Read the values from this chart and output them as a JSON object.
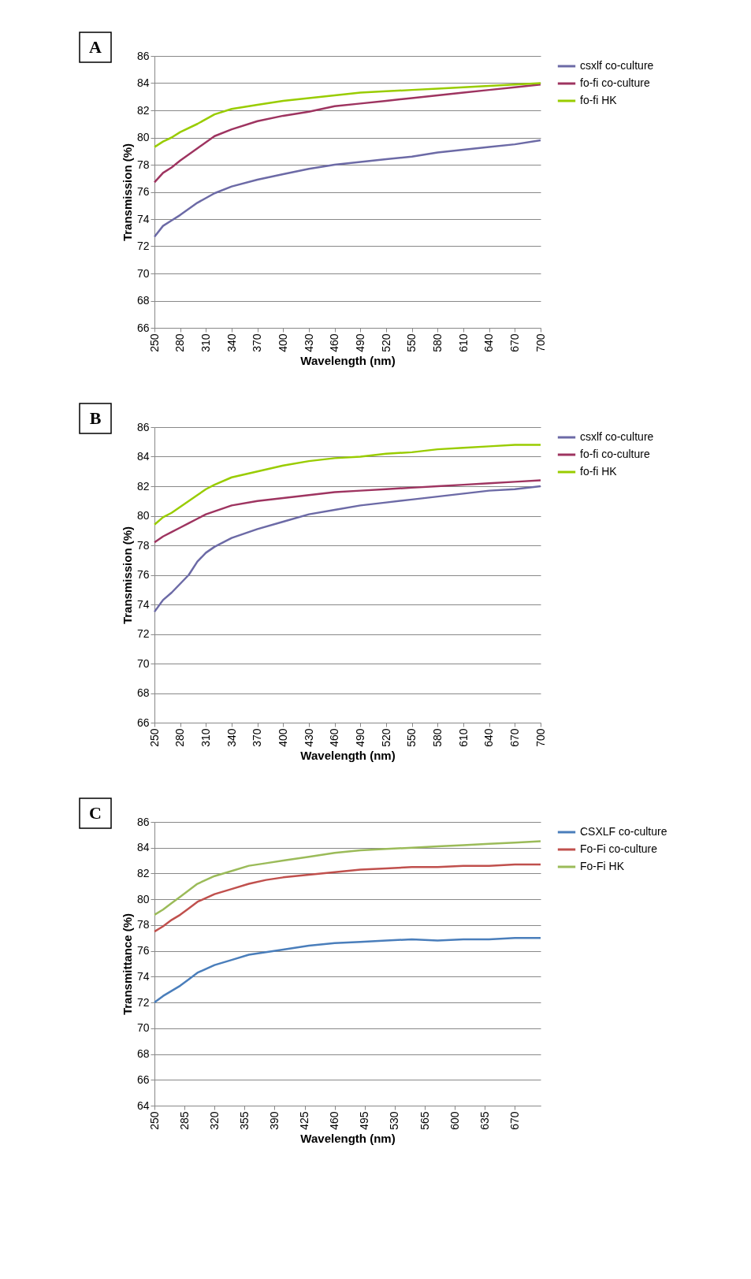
{
  "chart_data": [
    {
      "type": "line",
      "xlabel": "Wavelength (nm)",
      "ylabel": "Transmission (%)",
      "annotations": [
        "A"
      ],
      "xlim": [
        250,
        700
      ],
      "xticks": [
        250,
        280,
        310,
        340,
        370,
        400,
        430,
        460,
        490,
        520,
        550,
        580,
        610,
        640,
        670,
        700
      ],
      "ylim": [
        66,
        86
      ],
      "yticks": [
        66,
        68,
        70,
        72,
        74,
        76,
        78,
        80,
        82,
        84,
        86
      ],
      "grid": "y",
      "legend": "right",
      "line_style": "solid",
      "marker": "none",
      "x": [
        250,
        260,
        270,
        280,
        300,
        320,
        340,
        370,
        400,
        430,
        460,
        490,
        520,
        550,
        580,
        610,
        640,
        670,
        700
      ],
      "series": [
        {
          "name": "csxlf co-culture",
          "color": "#6c6aa6",
          "values": [
            72.7,
            73.5,
            73.9,
            74.3,
            75.2,
            75.9,
            76.4,
            76.9,
            77.3,
            77.7,
            78.0,
            78.2,
            78.4,
            78.6,
            78.9,
            79.1,
            79.3,
            79.5,
            79.8
          ]
        },
        {
          "name": "fo-fi co-culture",
          "color": "#9e3460",
          "values": [
            76.7,
            77.4,
            77.8,
            78.3,
            79.2,
            80.1,
            80.6,
            81.2,
            81.6,
            81.9,
            82.3,
            82.5,
            82.7,
            82.9,
            83.1,
            83.3,
            83.5,
            83.7,
            83.9
          ]
        },
        {
          "name": "fo-fi HK",
          "color": "#99cc00",
          "values": [
            79.3,
            79.7,
            80.0,
            80.4,
            81.0,
            81.7,
            82.1,
            82.4,
            82.7,
            82.9,
            83.1,
            83.3,
            83.4,
            83.5,
            83.6,
            83.7,
            83.8,
            83.9,
            84.0
          ]
        }
      ]
    },
    {
      "type": "line",
      "xlabel": "Wavelength (nm)",
      "ylabel": "Transmission (%)",
      "annotations": [
        "B"
      ],
      "xlim": [
        250,
        700
      ],
      "xticks": [
        250,
        280,
        310,
        340,
        370,
        400,
        430,
        460,
        490,
        520,
        550,
        580,
        610,
        640,
        670,
        700
      ],
      "ylim": [
        66,
        86
      ],
      "yticks": [
        66,
        68,
        70,
        72,
        74,
        76,
        78,
        80,
        82,
        84,
        86
      ],
      "grid": "y",
      "legend": "right",
      "line_style": "solid",
      "marker": "none",
      "x": [
        250,
        260,
        270,
        280,
        290,
        300,
        310,
        320,
        340,
        370,
        400,
        430,
        460,
        490,
        520,
        550,
        580,
        610,
        640,
        670,
        700
      ],
      "series": [
        {
          "name": "csxlf co-culture",
          "color": "#6c6aa6",
          "values": [
            73.5,
            74.3,
            74.8,
            75.4,
            76.0,
            76.9,
            77.5,
            77.9,
            78.5,
            79.1,
            79.6,
            80.1,
            80.4,
            80.7,
            80.9,
            81.1,
            81.3,
            81.5,
            81.7,
            81.8,
            82.0
          ]
        },
        {
          "name": "fo-fi co-culture",
          "color": "#9e3460",
          "values": [
            78.2,
            78.6,
            78.9,
            79.2,
            79.5,
            79.8,
            80.1,
            80.3,
            80.7,
            81.0,
            81.2,
            81.4,
            81.6,
            81.7,
            81.8,
            81.9,
            82.0,
            82.1,
            82.2,
            82.3,
            82.4
          ]
        },
        {
          "name": "fo-fi HK",
          "color": "#99cc00",
          "values": [
            79.4,
            79.9,
            80.2,
            80.6,
            81.0,
            81.4,
            81.8,
            82.1,
            82.6,
            83.0,
            83.4,
            83.7,
            83.9,
            84.0,
            84.2,
            84.3,
            84.5,
            84.6,
            84.7,
            84.8,
            84.8
          ]
        }
      ]
    },
    {
      "type": "line",
      "xlabel": "Wavelength (nm)",
      "ylabel": "Transmittance (%)",
      "annotations": [
        "C"
      ],
      "xlim": [
        250,
        700
      ],
      "xticks": [
        250,
        285,
        320,
        355,
        390,
        425,
        460,
        495,
        530,
        565,
        600,
        635,
        670
      ],
      "ylim": [
        64,
        86
      ],
      "yticks": [
        64,
        66,
        68,
        70,
        72,
        74,
        76,
        78,
        80,
        82,
        84,
        86
      ],
      "grid": "y",
      "legend": "right",
      "line_style": "solid",
      "marker": "none",
      "x": [
        250,
        260,
        270,
        280,
        290,
        300,
        320,
        340,
        360,
        380,
        400,
        430,
        460,
        490,
        520,
        550,
        580,
        610,
        640,
        670,
        700
      ],
      "series": [
        {
          "name": "CSXLF co-culture",
          "color": "#4a7ebb",
          "values": [
            72.0,
            72.5,
            72.9,
            73.3,
            73.8,
            74.3,
            74.9,
            75.3,
            75.7,
            75.9,
            76.1,
            76.4,
            76.6,
            76.7,
            76.8,
            76.9,
            76.8,
            76.9,
            76.9,
            77.0,
            77.0
          ]
        },
        {
          "name": "Fo-Fi co-culture",
          "color": "#c0504d",
          "values": [
            77.5,
            77.9,
            78.4,
            78.8,
            79.3,
            79.8,
            80.4,
            80.8,
            81.2,
            81.5,
            81.7,
            81.9,
            82.1,
            82.3,
            82.4,
            82.5,
            82.5,
            82.6,
            82.6,
            82.7,
            82.7
          ]
        },
        {
          "name": "Fo-Fi HK",
          "color": "#9bbb59",
          "values": [
            78.8,
            79.2,
            79.7,
            80.2,
            80.7,
            81.2,
            81.8,
            82.2,
            82.6,
            82.8,
            83.0,
            83.3,
            83.6,
            83.8,
            83.9,
            84.0,
            84.1,
            84.2,
            84.3,
            84.4,
            84.5
          ]
        }
      ]
    }
  ]
}
